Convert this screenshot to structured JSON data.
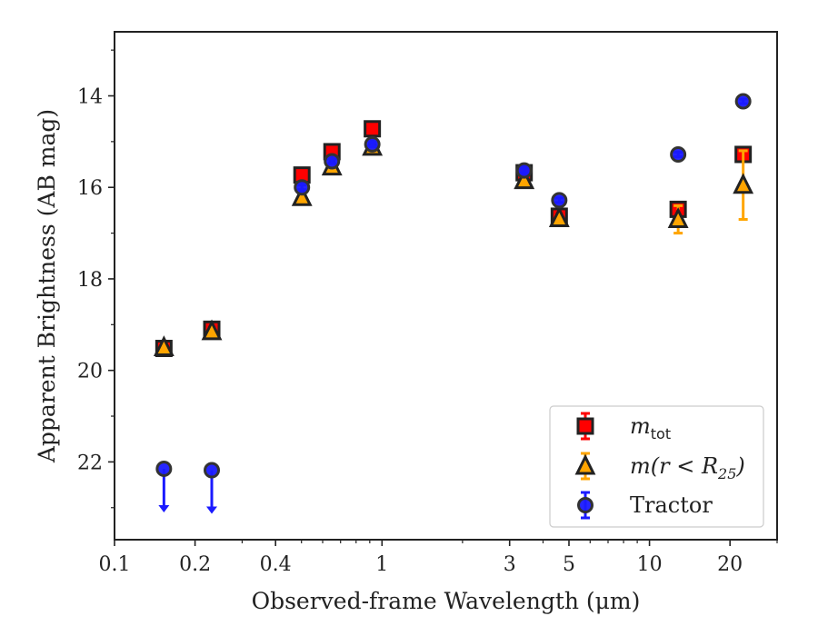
{
  "chart_data": {
    "type": "scatter",
    "title": "",
    "xlabel": "Observed-frame Wavelength (μm)",
    "ylabel": "Apparent Brightness (AB mag)",
    "xscale": "log",
    "xlim": [
      0.1,
      30
    ],
    "ylim": [
      23.7,
      12.6
    ],
    "y_inverted": true,
    "grid": false,
    "legend_position": "bottom-right",
    "x_ticks": [
      0.1,
      0.2,
      0.4,
      1,
      3,
      5,
      10,
      20
    ],
    "x_tick_labels": [
      "0.1",
      "0.2",
      "0.4",
      "1",
      "3",
      "5",
      "10",
      "20"
    ],
    "y_ticks": [
      14,
      16,
      18,
      20,
      22
    ],
    "y_tick_labels": [
      "14",
      "16",
      "18",
      "20",
      "22"
    ],
    "series": [
      {
        "name": "m_tot",
        "legend_main": "m",
        "legend_sub": "tot",
        "marker": "square",
        "color": "#ff0000",
        "edge": "#222222",
        "points": [
          {
            "x": 0.153,
            "y": 19.52,
            "err": 0.1
          },
          {
            "x": 0.231,
            "y": 19.1,
            "err": 0.1
          },
          {
            "x": 0.502,
            "y": 15.73,
            "err": 0.05
          },
          {
            "x": 0.65,
            "y": 15.22,
            "err": 0.05
          },
          {
            "x": 0.92,
            "y": 14.72,
            "err": 0.05
          },
          {
            "x": 3.4,
            "y": 15.68,
            "err": 0.05
          },
          {
            "x": 4.6,
            "y": 16.63,
            "err": 0.05
          },
          {
            "x": 12.8,
            "y": 16.48,
            "err": 0.05
          },
          {
            "x": 22.4,
            "y": 15.28,
            "err": 0.05
          }
        ]
      },
      {
        "name": "m(r < R25)",
        "legend_main": "m(r < R",
        "legend_sub": "25",
        "legend_tail": ")",
        "marker": "triangle",
        "color": "#ffa500",
        "edge": "#222222",
        "points": [
          {
            "x": 0.153,
            "y": 19.5,
            "err": 0.05
          },
          {
            "x": 0.231,
            "y": 19.15,
            "err": 0.05
          },
          {
            "x": 0.502,
            "y": 16.22,
            "err": 0.05
          },
          {
            "x": 0.65,
            "y": 15.55,
            "err": 0.05
          },
          {
            "x": 0.92,
            "y": 15.12,
            "err": 0.05
          },
          {
            "x": 3.4,
            "y": 15.85,
            "err": 0.05
          },
          {
            "x": 4.6,
            "y": 16.68,
            "err": 0.05
          },
          {
            "x": 12.8,
            "y": 16.7,
            "err": 0.3
          },
          {
            "x": 22.4,
            "y": 15.95,
            "err": 0.75
          }
        ]
      },
      {
        "name": "Tractor",
        "marker": "circle",
        "color": "#1a1aff",
        "edge": "#333333",
        "points": [
          {
            "x": 0.153,
            "y": 22.15,
            "upper_limit": true
          },
          {
            "x": 0.231,
            "y": 22.18,
            "upper_limit": true
          },
          {
            "x": 0.502,
            "y": 16.0,
            "err": 0.05
          },
          {
            "x": 0.65,
            "y": 15.43,
            "err": 0.05
          },
          {
            "x": 0.92,
            "y": 15.06,
            "err": 0.05
          },
          {
            "x": 3.4,
            "y": 15.63,
            "err": 0.05
          },
          {
            "x": 4.6,
            "y": 16.28,
            "err": 0.05
          },
          {
            "x": 12.8,
            "y": 15.28,
            "err": 0.05
          },
          {
            "x": 22.4,
            "y": 14.12,
            "err": 0.05
          }
        ]
      }
    ]
  }
}
